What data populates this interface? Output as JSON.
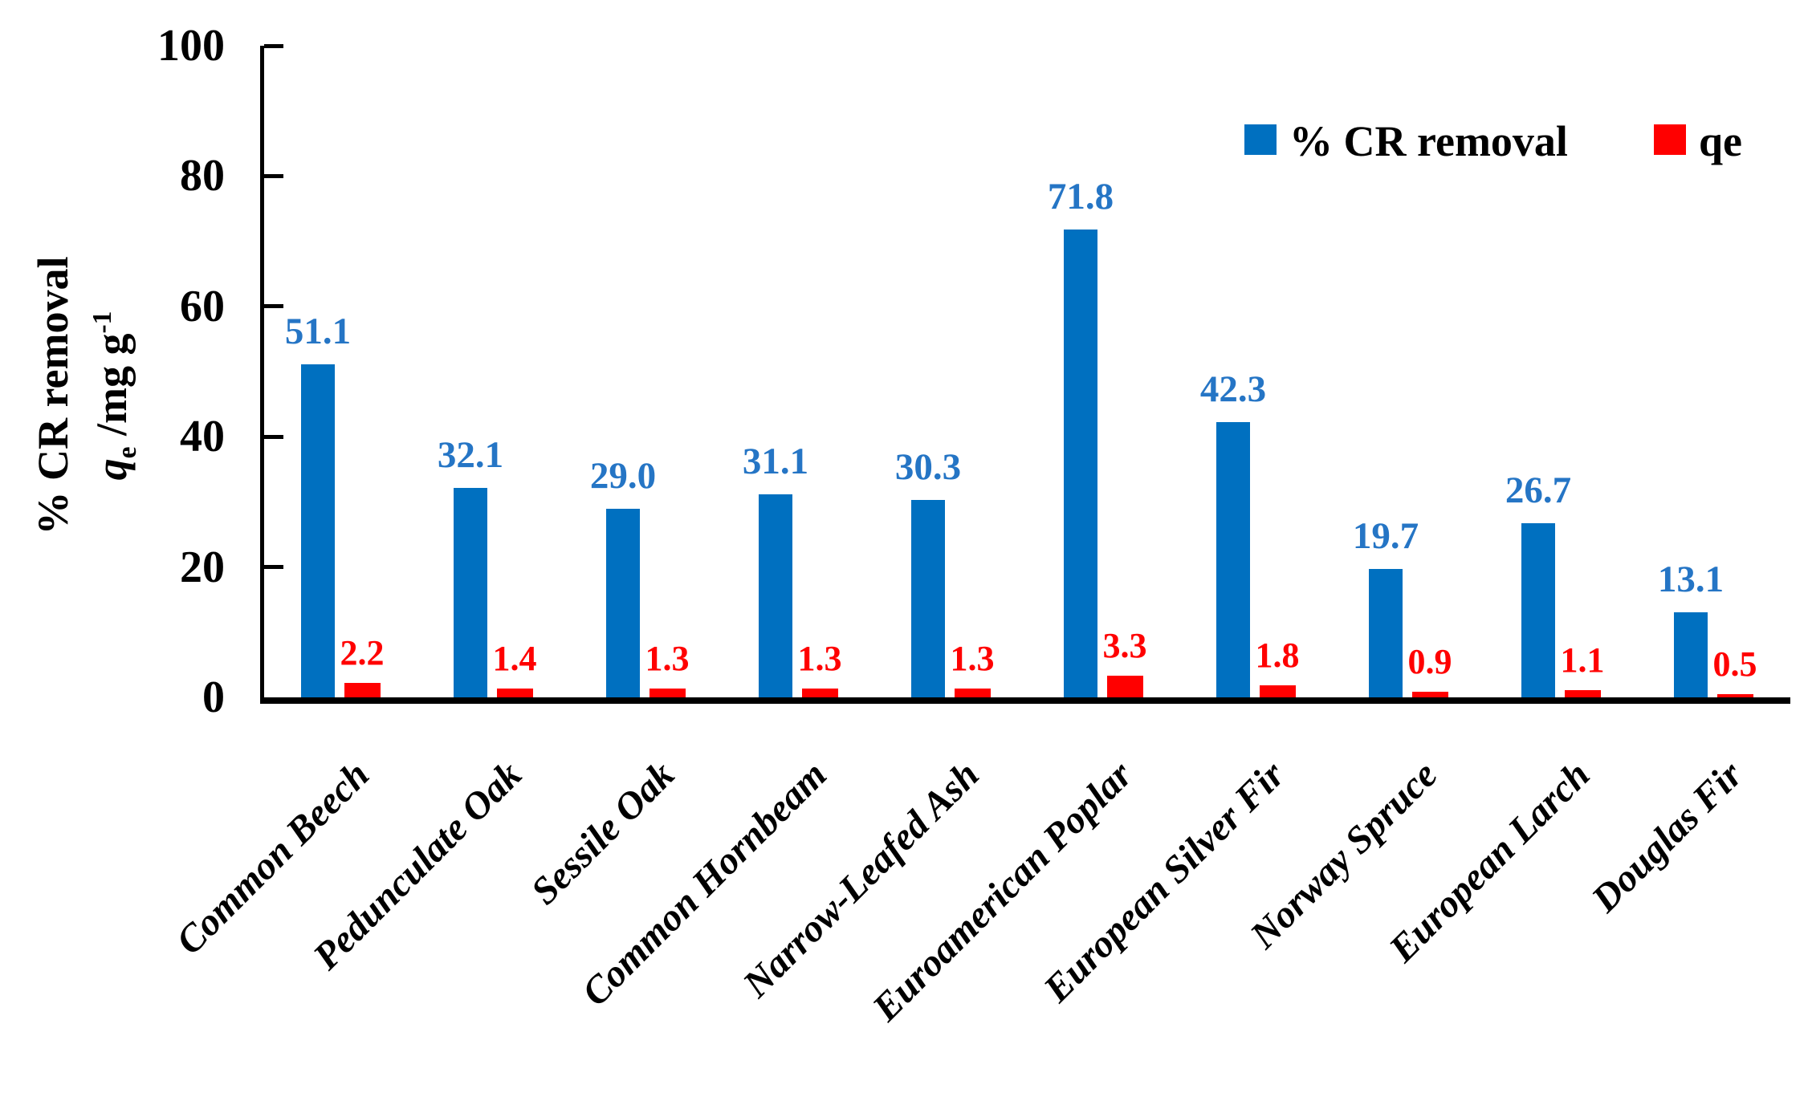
{
  "figure": {
    "background": "#ffffff"
  },
  "y_axis": {
    "title_line1": "% CR removal",
    "title_q": "q",
    "title_sub": "e",
    "title_rest": " /mg g",
    "title_sup": "-1",
    "tick_labels": [
      "100",
      "80",
      "60",
      "40",
      "20",
      "0"
    ]
  },
  "legend": [
    {
      "label": "% CR removal",
      "color": "#0070C0"
    },
    {
      "label": "qe",
      "color": "#FF0000"
    }
  ],
  "chart_data": {
    "type": "bar",
    "title": "",
    "xlabel": "",
    "ylabel": "% CR removal / qe (mg g-1)",
    "ylim": [
      0,
      100
    ],
    "ytick_step": 20,
    "grid": false,
    "legend_position": "top-right",
    "categories": [
      "Common Beech",
      "Pedunculate Oak",
      "Sessile Oak",
      "Common Hornbeam",
      "Narrow-Leafed Ash",
      "Euroamerican Poplar",
      "European Silver Fir",
      "Norway Spruce",
      "European Larch",
      "Douglas Fir"
    ],
    "series": [
      {
        "name": "% CR removal",
        "color": "#0070C0",
        "label_color": "#2575C5",
        "values": [
          51.1,
          32.1,
          29.0,
          31.1,
          30.3,
          71.8,
          42.3,
          19.7,
          26.7,
          13.1
        ],
        "value_labels": [
          "51.1",
          "32.1",
          "29.0",
          "31.1",
          "30.3",
          "71.8",
          "42.3",
          "19.7",
          "26.7",
          "13.1"
        ]
      },
      {
        "name": "qe",
        "color": "#FF0000",
        "label_color": "#FF0000",
        "values": [
          2.2,
          1.4,
          1.3,
          1.3,
          1.3,
          3.3,
          1.8,
          0.9,
          1.1,
          0.5
        ],
        "value_labels": [
          "2.2",
          "1.4",
          "1.3",
          "1.3",
          "1.3",
          "3.3",
          "1.8",
          "0.9",
          "1.1",
          "0.5"
        ]
      }
    ]
  }
}
